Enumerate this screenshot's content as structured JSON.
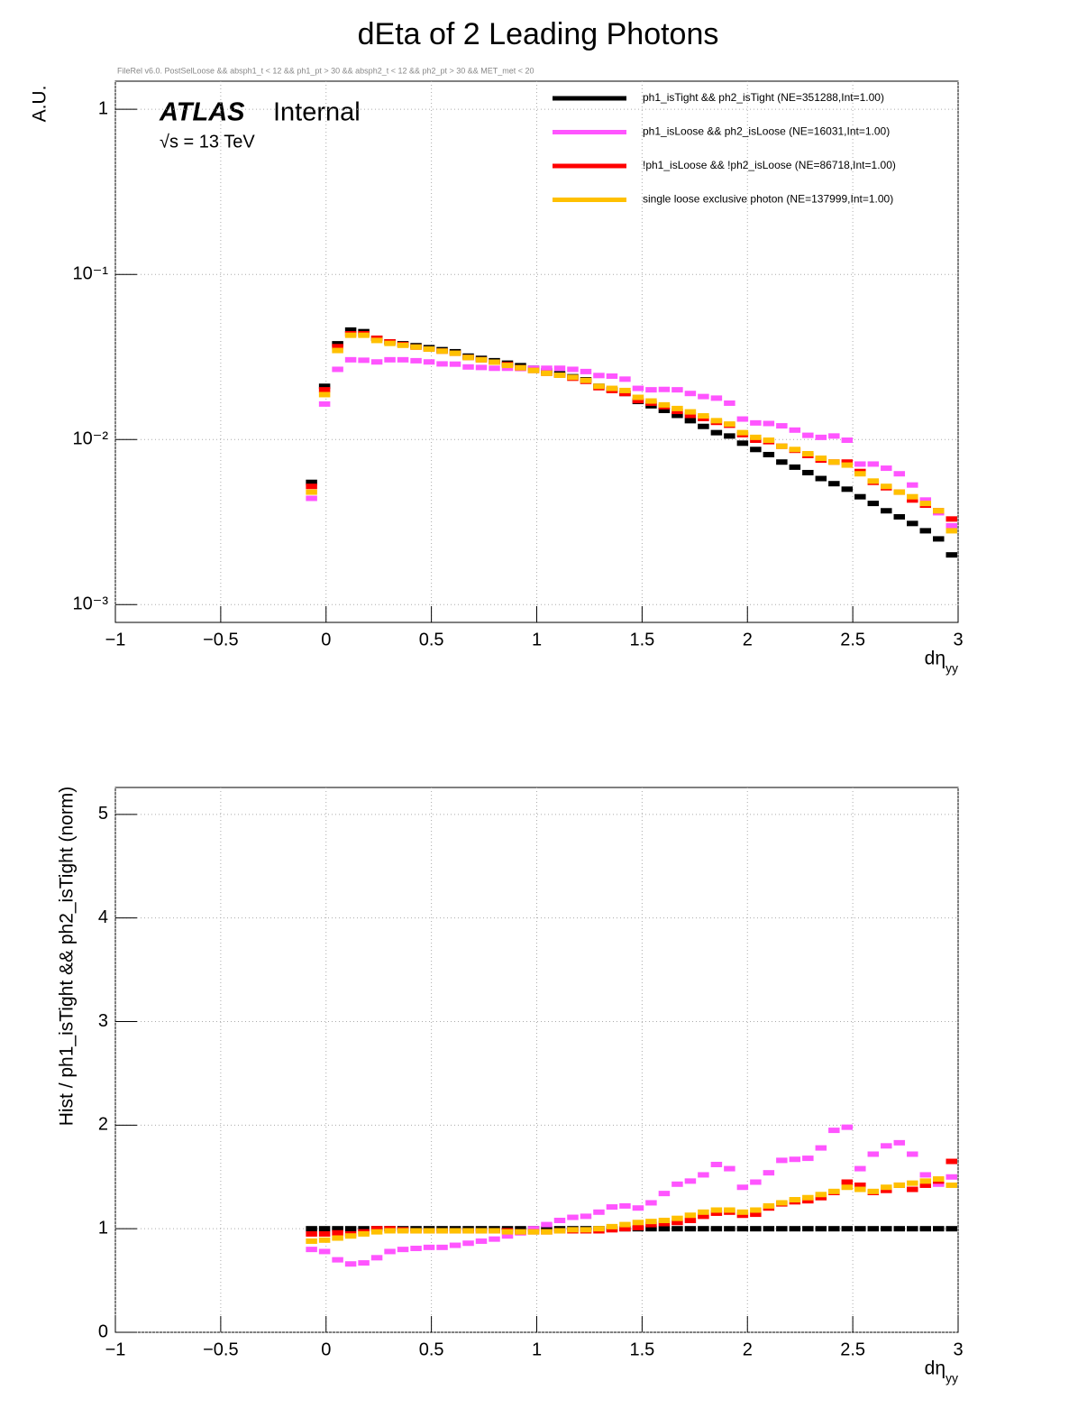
{
  "header": {
    "title": "dEta of 2 Leading Photons",
    "selection_note": "FileRel v6.0. PostSelLoose && absph1_t < 12 && ph1_pt > 30 && absph2_t < 12 && ph2_pt > 30 && MET_met < 20"
  },
  "chart_data": [
    {
      "type": "histogram",
      "log_y": true,
      "grid": true,
      "legend": "top-right",
      "ylabel": "A.U.",
      "xlabel": "dη",
      "xlabel_subscript": "yy",
      "atlas_label": "ATLAS",
      "atlas_status": "Internal",
      "energy_label": "√s = 13 TeV",
      "bins": [
        -0.1,
        -0.038,
        0.024,
        0.086,
        0.148,
        0.21,
        0.272,
        0.334,
        0.396,
        0.458,
        0.52,
        0.582,
        0.644,
        0.706,
        0.768,
        0.83,
        0.892,
        0.954,
        1.016,
        1.078,
        1.14,
        1.202,
        1.264,
        1.326,
        1.388,
        1.45,
        1.512,
        1.574,
        1.636,
        1.698,
        1.76,
        1.822,
        1.884,
        1.946,
        2.008,
        2.07,
        2.132,
        2.194,
        2.256,
        2.318,
        2.38,
        2.442,
        2.504,
        2.566,
        2.628,
        2.69,
        2.752,
        2.814,
        2.876,
        2.938,
        3.0
      ],
      "xlim": [
        -1,
        3
      ],
      "xticks": [
        {
          "value": -1,
          "label": "−1"
        },
        {
          "value": -0.5,
          "label": "−0.5"
        },
        0,
        0.5,
        1,
        1.5,
        2,
        2.5,
        3
      ],
      "ylim": [
        0.00078,
        1.48
      ],
      "yticks": [
        {
          "value": 0.001,
          "label": "10⁻³"
        },
        {
          "value": 0.01,
          "label": "10⁻²"
        },
        {
          "value": 0.1,
          "label": "10⁻¹"
        },
        1
      ],
      "series": [
        {
          "name": "ph1_isTight && ph2_isTight (NE=351288,Int=1.00)",
          "color": "#000000",
          "values": [
            0.0055,
            0.021,
            0.038,
            0.046,
            0.045,
            0.041,
            0.039,
            0.038,
            0.037,
            0.036,
            0.035,
            0.034,
            0.032,
            0.031,
            0.03,
            0.029,
            0.028,
            0.027,
            0.026,
            0.025,
            0.024,
            0.023,
            0.021,
            0.02,
            0.019,
            0.017,
            0.016,
            0.015,
            0.014,
            0.013,
            0.012,
            0.011,
            0.0105,
            0.0095,
            0.0087,
            0.0081,
            0.0073,
            0.0068,
            0.0063,
            0.0058,
            0.0054,
            0.005,
            0.0045,
            0.0041,
            0.0037,
            0.0034,
            0.0031,
            0.0028,
            0.0025,
            0.002
          ]
        },
        {
          "name": "ph1_isLoose && ph2_isLoose (NE=16031,Int=1.00)",
          "color": "#ff55ff",
          "values": [
            0.0044,
            0.0164,
            0.0266,
            0.0304,
            0.0302,
            0.0295,
            0.0304,
            0.0304,
            0.03,
            0.0295,
            0.0287,
            0.0286,
            0.0275,
            0.0273,
            0.027,
            0.027,
            0.0269,
            0.027,
            0.027,
            0.027,
            0.0266,
            0.0258,
            0.0244,
            0.0242,
            0.0232,
            0.0204,
            0.02,
            0.0201,
            0.02,
            0.019,
            0.0182,
            0.0178,
            0.0166,
            0.0133,
            0.0126,
            0.0125,
            0.0121,
            0.0114,
            0.0106,
            0.0103,
            0.0105,
            0.0099,
            0.0071,
            0.0071,
            0.0067,
            0.0062,
            0.0053,
            0.0043,
            0.0036,
            0.003
          ]
        },
        {
          "name": "!ph1_isLoose && !ph2_isLoose (NE=86718,Int=1.00)",
          "color": "#ff0000",
          "values": [
            0.0052,
            0.02,
            0.0365,
            0.0437,
            0.0437,
            0.041,
            0.039,
            0.0376,
            0.0363,
            0.0353,
            0.0343,
            0.0333,
            0.0314,
            0.0304,
            0.0294,
            0.0284,
            0.0272,
            0.0262,
            0.0252,
            0.0245,
            0.0235,
            0.0225,
            0.0206,
            0.0198,
            0.019,
            0.0172,
            0.0166,
            0.0158,
            0.0148,
            0.014,
            0.0134,
            0.0127,
            0.0122,
            0.0107,
            0.0099,
            0.0097,
            0.0091,
            0.0086,
            0.008,
            0.0075,
            0.0073,
            0.0073,
            0.0064,
            0.0055,
            0.0051,
            0.0048,
            0.0043,
            0.004,
            0.0037,
            0.0033
          ]
        },
        {
          "name": "single loose exclusive photon (NE=137999,Int=1.00)",
          "color": "#ffc000",
          "values": [
            0.0048,
            0.0187,
            0.0346,
            0.0428,
            0.0428,
            0.0398,
            0.0382,
            0.0372,
            0.0363,
            0.0353,
            0.0343,
            0.0333,
            0.0314,
            0.0304,
            0.0294,
            0.0281,
            0.0272,
            0.0262,
            0.0252,
            0.0245,
            0.0238,
            0.0228,
            0.021,
            0.0204,
            0.0198,
            0.018,
            0.0171,
            0.0162,
            0.0154,
            0.0147,
            0.0139,
            0.013,
            0.0124,
            0.011,
            0.0103,
            0.0099,
            0.0091,
            0.0087,
            0.0082,
            0.0077,
            0.0073,
            0.007,
            0.0062,
            0.0056,
            0.0052,
            0.0048,
            0.0045,
            0.0041,
            0.0037,
            0.0028
          ]
        }
      ]
    },
    {
      "type": "histogram",
      "log_y": false,
      "grid": true,
      "ylabel": "Hist / ph1_isTight && ph2_isTight (norm)",
      "xlabel": "dη",
      "xlabel_subscript": "yy",
      "bins": [
        -0.1,
        -0.038,
        0.024,
        0.086,
        0.148,
        0.21,
        0.272,
        0.334,
        0.396,
        0.458,
        0.52,
        0.582,
        0.644,
        0.706,
        0.768,
        0.83,
        0.892,
        0.954,
        1.016,
        1.078,
        1.14,
        1.202,
        1.264,
        1.326,
        1.388,
        1.45,
        1.512,
        1.574,
        1.636,
        1.698,
        1.76,
        1.822,
        1.884,
        1.946,
        2.008,
        2.07,
        2.132,
        2.194,
        2.256,
        2.318,
        2.38,
        2.442,
        2.504,
        2.566,
        2.628,
        2.69,
        2.752,
        2.814,
        2.876,
        2.938,
        3.0
      ],
      "xlim": [
        -1,
        3
      ],
      "xticks": [
        {
          "value": -1,
          "label": "−1"
        },
        {
          "value": -0.5,
          "label": "−0.5"
        },
        0,
        0.5,
        1,
        1.5,
        2,
        2.5,
        3
      ],
      "ylim": [
        0,
        5.26
      ],
      "yticks": [
        0,
        1,
        2,
        3,
        4,
        5
      ],
      "series": [
        {
          "color": "#000000",
          "values": [
            1,
            1,
            1,
            1,
            1,
            1,
            1,
            1,
            1,
            1,
            1,
            1,
            1,
            1,
            1,
            1,
            1,
            1,
            1,
            1,
            1,
            1,
            1,
            1,
            1,
            1,
            1,
            1,
            1,
            1,
            1,
            1,
            1,
            1,
            1,
            1,
            1,
            1,
            1,
            1,
            1,
            1,
            1,
            1,
            1,
            1,
            1,
            1,
            1,
            1
          ]
        },
        {
          "color": "#ff55ff",
          "values": [
            0.8,
            0.78,
            0.7,
            0.66,
            0.67,
            0.72,
            0.78,
            0.8,
            0.81,
            0.82,
            0.82,
            0.84,
            0.86,
            0.88,
            0.9,
            0.93,
            0.96,
            1.0,
            1.04,
            1.08,
            1.11,
            1.12,
            1.16,
            1.21,
            1.22,
            1.2,
            1.25,
            1.34,
            1.43,
            1.46,
            1.52,
            1.62,
            1.58,
            1.4,
            1.45,
            1.54,
            1.66,
            1.67,
            1.68,
            1.78,
            1.95,
            1.98,
            1.58,
            1.72,
            1.8,
            1.83,
            1.72,
            1.52,
            1.43,
            1.5
          ]
        },
        {
          "color": "#ff0000",
          "values": [
            0.95,
            0.95,
            0.96,
            0.95,
            0.97,
            1.0,
            1.0,
            0.99,
            0.98,
            0.98,
            0.98,
            0.98,
            0.98,
            0.98,
            0.98,
            0.98,
            0.97,
            0.97,
            0.97,
            0.98,
            0.98,
            0.98,
            0.98,
            0.99,
            1.0,
            1.01,
            1.04,
            1.05,
            1.06,
            1.08,
            1.12,
            1.15,
            1.16,
            1.13,
            1.14,
            1.2,
            1.24,
            1.26,
            1.27,
            1.3,
            1.35,
            1.45,
            1.42,
            1.35,
            1.37,
            1.42,
            1.38,
            1.42,
            1.46,
            1.65
          ]
        },
        {
          "color": "#ffc000",
          "values": [
            0.88,
            0.89,
            0.91,
            0.93,
            0.95,
            0.97,
            0.98,
            0.98,
            0.98,
            0.98,
            0.98,
            0.98,
            0.98,
            0.98,
            0.98,
            0.97,
            0.97,
            0.97,
            0.97,
            0.98,
            0.99,
            0.99,
            1.0,
            1.02,
            1.04,
            1.06,
            1.07,
            1.08,
            1.1,
            1.13,
            1.16,
            1.18,
            1.18,
            1.16,
            1.18,
            1.22,
            1.25,
            1.28,
            1.3,
            1.33,
            1.36,
            1.4,
            1.38,
            1.36,
            1.4,
            1.42,
            1.44,
            1.46,
            1.48,
            1.42
          ]
        }
      ]
    }
  ]
}
